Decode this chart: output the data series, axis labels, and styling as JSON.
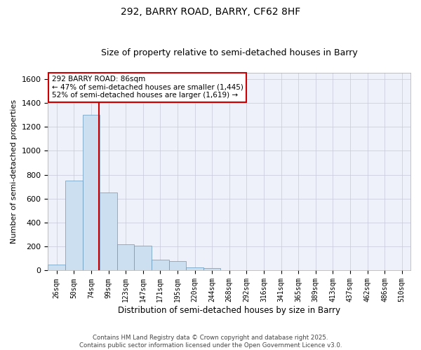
{
  "title": "292, BARRY ROAD, BARRY, CF62 8HF",
  "subtitle": "Size of property relative to semi-detached houses in Barry",
  "xlabel": "Distribution of semi-detached houses by size in Barry",
  "ylabel": "Number of semi-detached properties",
  "categories": [
    "26sqm",
    "50sqm",
    "74sqm",
    "99sqm",
    "123sqm",
    "147sqm",
    "171sqm",
    "195sqm",
    "220sqm",
    "244sqm",
    "268sqm",
    "292sqm",
    "316sqm",
    "341sqm",
    "365sqm",
    "389sqm",
    "413sqm",
    "437sqm",
    "462sqm",
    "486sqm",
    "510sqm"
  ],
  "values": [
    50,
    750,
    1300,
    650,
    220,
    210,
    90,
    80,
    25,
    18,
    5,
    3,
    2,
    1,
    1,
    0,
    0,
    0,
    0,
    0,
    0
  ],
  "bar_color": "#ccdff0",
  "bar_edge_color": "#6699bb",
  "bar_edge_width": 0.5,
  "grid_color": "#c8c8d8",
  "background_color": "#eef0fa",
  "redline_label": "292 BARRY ROAD: 86sqm",
  "annotation_smaller": "← 47% of semi-detached houses are smaller (1,445)",
  "annotation_larger": "52% of semi-detached houses are larger (1,619) →",
  "annotation_box_facecolor": "#ffffff",
  "annotation_box_edgecolor": "#cc0000",
  "ylim": [
    0,
    1650
  ],
  "yticks": [
    0,
    200,
    400,
    600,
    800,
    1000,
    1200,
    1400,
    1600
  ],
  "footer_line1": "Contains HM Land Registry data © Crown copyright and database right 2025.",
  "footer_line2": "Contains public sector information licensed under the Open Government Licence v3.0."
}
